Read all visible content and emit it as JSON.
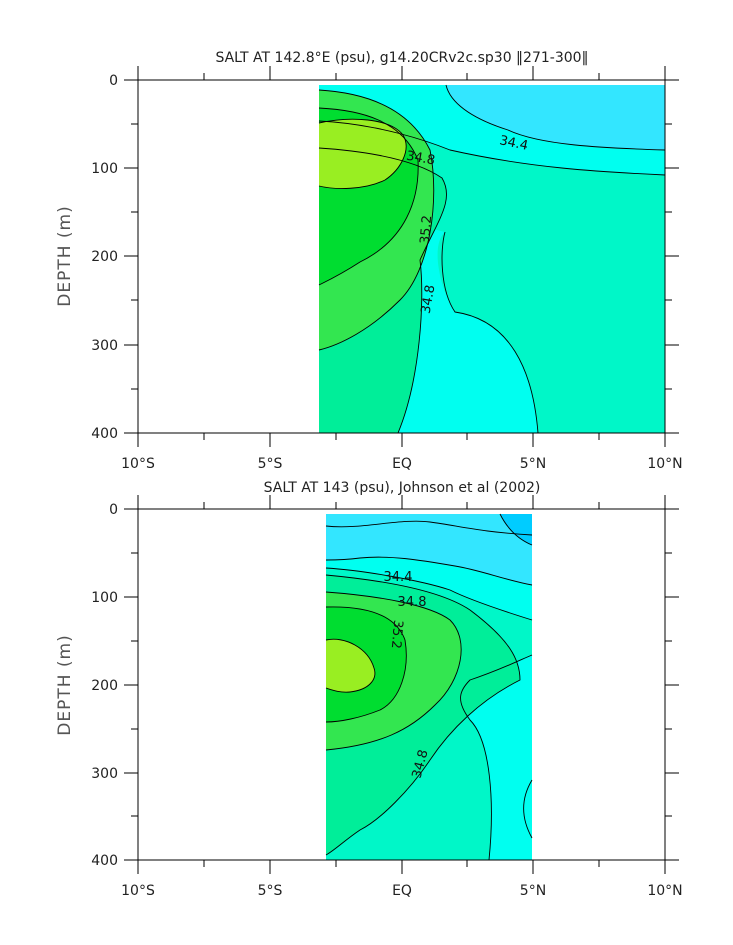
{
  "chart_data": [
    {
      "type": "contour",
      "title": "SALT AT 142.8°E (psu), g14.20CRv2c.sp30 ‖271-300‖",
      "xlabel": "",
      "ylabel": "DEPTH (m)",
      "xlim": [
        -10,
        10
      ],
      "ylim": [
        400,
        0
      ],
      "x_ticks": [
        "10°S",
        "5°S",
        "EQ",
        "5°N",
        "10°N"
      ],
      "y_ticks": [
        "0",
        "100",
        "200",
        "300",
        "400"
      ],
      "data_extent_lat": [
        -3,
        10
      ],
      "contour_labels": [
        "34.4",
        "34.8",
        "35.2",
        "34.8"
      ],
      "colors": {
        "lt_34_4": "#33e6ff",
        "34_4_to_34_6": "#00fff0",
        "34_6_to_34_8": "#00f7c8",
        "34_8_to_35_0": "#00ee99",
        "35_0_to_35_2": "#33e650",
        "35_2_to_35_4": "#00dd30",
        "gt_35_4": "#99ee22"
      }
    },
    {
      "type": "contour",
      "title": "SALT AT 143 (psu), Johnson et al (2002)",
      "xlabel": "",
      "ylabel": "DEPTH (m)",
      "xlim": [
        -10,
        10
      ],
      "ylim": [
        400,
        0
      ],
      "x_ticks": [
        "10°S",
        "5°S",
        "EQ",
        "5°N",
        "10°N"
      ],
      "y_ticks": [
        "0",
        "100",
        "200",
        "300",
        "400"
      ],
      "data_extent_lat": [
        -2.8,
        5
      ],
      "contour_labels": [
        "34.4",
        "34.8",
        "35.2",
        "34.8"
      ],
      "colors": {
        "lt_34_2": "#00ccff",
        "34_2_to_34_4": "#33e6ff",
        "34_4_to_34_6": "#00fff0",
        "34_6_to_34_8": "#00f7c8",
        "34_8_to_35_0": "#00ee99",
        "35_0_to_35_2": "#33e650",
        "35_2_to_35_4": "#00dd30",
        "gt_35_4": "#99ee22"
      }
    }
  ]
}
